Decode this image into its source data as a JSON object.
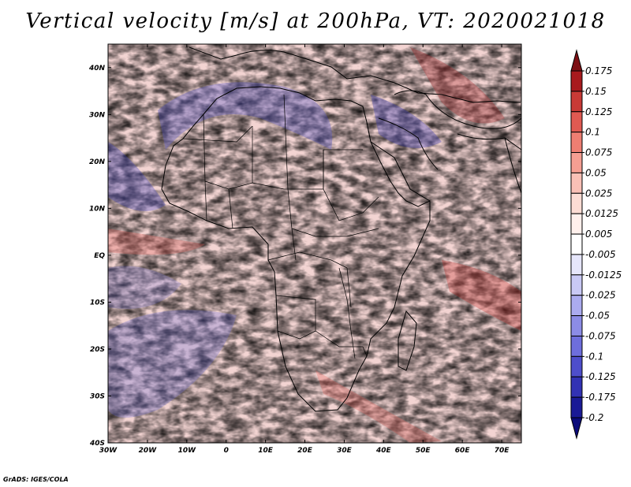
{
  "title": "Vertical velocity [m/s] at 200hPa, VT: 2020021018",
  "credit": "GrADS: IGES/COLA",
  "map": {
    "lat_labels": [
      "40N",
      "30N",
      "20N",
      "10N",
      "EQ",
      "10S",
      "20S",
      "30S",
      "40S"
    ],
    "lon_labels": [
      "30W",
      "20W",
      "10W",
      "0",
      "10E",
      "20E",
      "30E",
      "40E",
      "50E",
      "60E",
      "70E"
    ],
    "lat_range": [
      -40,
      45
    ],
    "lon_range": [
      -30,
      75
    ]
  },
  "colorbar": {
    "levels": [
      {
        "label": "0.175",
        "color": "#7d0f14"
      },
      {
        "label": "0.15",
        "color": "#a81a1e"
      },
      {
        "label": "0.125",
        "color": "#c83a36"
      },
      {
        "label": "0.1",
        "color": "#e05a52"
      },
      {
        "label": "0.075",
        "color": "#ee7e72"
      },
      {
        "label": "0.05",
        "color": "#f59e92"
      },
      {
        "label": "0.025",
        "color": "#f9c0b6"
      },
      {
        "label": "0.0125",
        "color": "#fcdcd4"
      },
      {
        "label": "0.005",
        "color": "#fff0ec"
      },
      {
        "label": "-0.005",
        "color": "#ffffff"
      },
      {
        "label": "-0.0125",
        "color": "#e6e6fb"
      },
      {
        "label": "-0.025",
        "color": "#c9c9f5"
      },
      {
        "label": "-0.05",
        "color": "#ababef"
      },
      {
        "label": "-0.075",
        "color": "#8c8ce6"
      },
      {
        "label": "-0.1",
        "color": "#6e6edc"
      },
      {
        "label": "-0.125",
        "color": "#4e4ecb"
      },
      {
        "label": "-0.175",
        "color": "#3232b4"
      },
      {
        "label": "-0.2",
        "color": "#1a1a96"
      }
    ],
    "min_color": "#0b0b7a"
  }
}
